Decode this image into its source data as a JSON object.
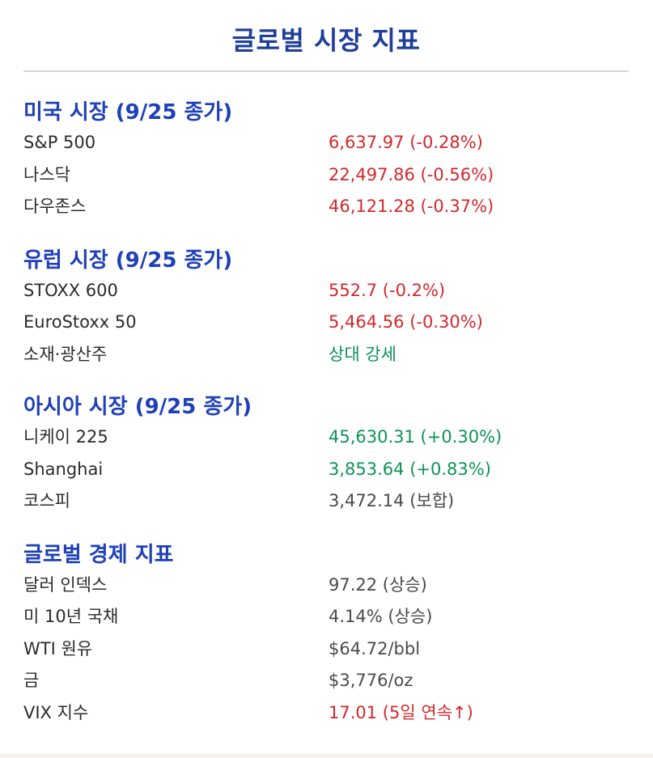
{
  "title": "글로벌 시장 지표",
  "sections": [
    {
      "heading": "미국 시장 (9/25 종가)",
      "rows": [
        {
          "label": "S&P 500",
          "value": "6,637.97 (-0.28%)",
          "tone": "neg"
        },
        {
          "label": "나스닥",
          "value": "22,497.86 (-0.56%)",
          "tone": "neg"
        },
        {
          "label": "다우존스",
          "value": "46,121.28 (-0.37%)",
          "tone": "neg"
        }
      ]
    },
    {
      "heading": "유럽 시장 (9/25 종가)",
      "rows": [
        {
          "label": "STOXX 600",
          "value": "552.7 (-0.2%)",
          "tone": "neg"
        },
        {
          "label": "EuroStoxx 50",
          "value": "5,464.56 (-0.30%)",
          "tone": "neg"
        },
        {
          "label": "소재·광산주",
          "value": "상대 강세",
          "tone": "pos"
        }
      ]
    },
    {
      "heading": "아시아 시장 (9/25 종가)",
      "rows": [
        {
          "label": "니케이 225",
          "value": "45,630.31 (+0.30%)",
          "tone": "pos"
        },
        {
          "label": "Shanghai",
          "value": "3,853.64 (+0.83%)",
          "tone": "pos"
        },
        {
          "label": "코스피",
          "value": "3,472.14 (보합)",
          "tone": "neutral"
        }
      ]
    },
    {
      "heading": "글로벌 경제 지표",
      "rows": [
        {
          "label": "달러 인덱스",
          "value": "97.22 (상승)",
          "tone": "neutral"
        },
        {
          "label": "미 10년 국채",
          "value": "4.14% (상승)",
          "tone": "neutral"
        },
        {
          "label": "WTI 원유",
          "value": "$64.72/bbl",
          "tone": "neutral"
        },
        {
          "label": "금",
          "value": "$3,776/oz",
          "tone": "neutral"
        },
        {
          "label": "VIX 지수",
          "value": "17.01 (5일 연속↑)",
          "tone": "neg"
        }
      ]
    }
  ],
  "colors": {
    "title": "#1f3f9b",
    "heading": "#1e40b8",
    "negative": "#d4282c",
    "positive": "#0b9456",
    "neutral": "#4a4a4a"
  }
}
